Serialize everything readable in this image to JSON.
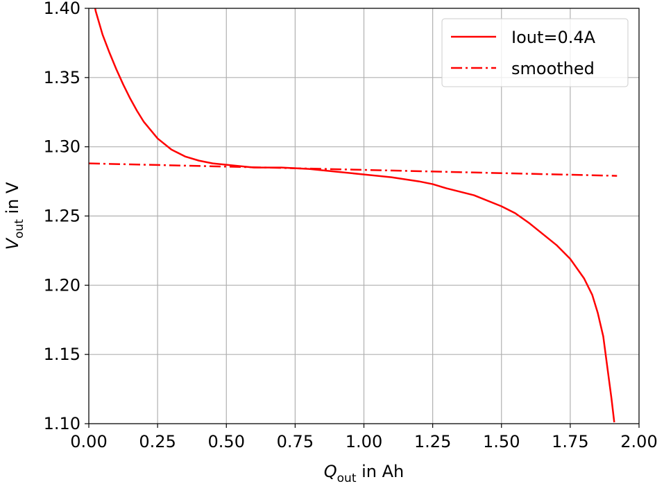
{
  "chart_data": {
    "type": "line",
    "xlabel": {
      "symbol": "Q",
      "sub": "out",
      "rest": " in Ah"
    },
    "ylabel": {
      "symbol": "V",
      "sub": "out",
      "rest": " in V"
    },
    "xlim": [
      0.0,
      2.0
    ],
    "ylim": [
      1.1,
      1.4
    ],
    "xticks": [
      "0.00",
      "0.25",
      "0.50",
      "0.75",
      "1.00",
      "1.25",
      "1.50",
      "1.75",
      "2.00"
    ],
    "yticks": [
      "1.10",
      "1.15",
      "1.20",
      "1.25",
      "1.30",
      "1.35",
      "1.40"
    ],
    "grid": true,
    "legend_position": "upper right",
    "series": [
      {
        "name": "Iout=0.4A",
        "color": "#ff0000",
        "style": "solid",
        "x": [
          0.0,
          0.025,
          0.05,
          0.075,
          0.1,
          0.125,
          0.15,
          0.175,
          0.2,
          0.25,
          0.3,
          0.35,
          0.4,
          0.45,
          0.5,
          0.55,
          0.6,
          0.7,
          0.8,
          0.9,
          1.0,
          1.1,
          1.2,
          1.25,
          1.3,
          1.4,
          1.5,
          1.55,
          1.6,
          1.65,
          1.7,
          1.75,
          1.8,
          1.83,
          1.85,
          1.87,
          1.88,
          1.89,
          1.9,
          1.91
        ],
        "y": [
          1.425,
          1.398,
          1.381,
          1.368,
          1.356,
          1.345,
          1.335,
          1.326,
          1.318,
          1.306,
          1.298,
          1.293,
          1.29,
          1.288,
          1.287,
          1.286,
          1.285,
          1.285,
          1.284,
          1.282,
          1.28,
          1.278,
          1.275,
          1.273,
          1.27,
          1.265,
          1.257,
          1.252,
          1.245,
          1.237,
          1.229,
          1.219,
          1.205,
          1.193,
          1.18,
          1.163,
          1.148,
          1.133,
          1.118,
          1.101
        ]
      },
      {
        "name": "smoothed",
        "color": "#ff0000",
        "style": "dashdot",
        "x": [
          0.0,
          1.92
        ],
        "y": [
          1.288,
          1.279
        ]
      }
    ]
  }
}
